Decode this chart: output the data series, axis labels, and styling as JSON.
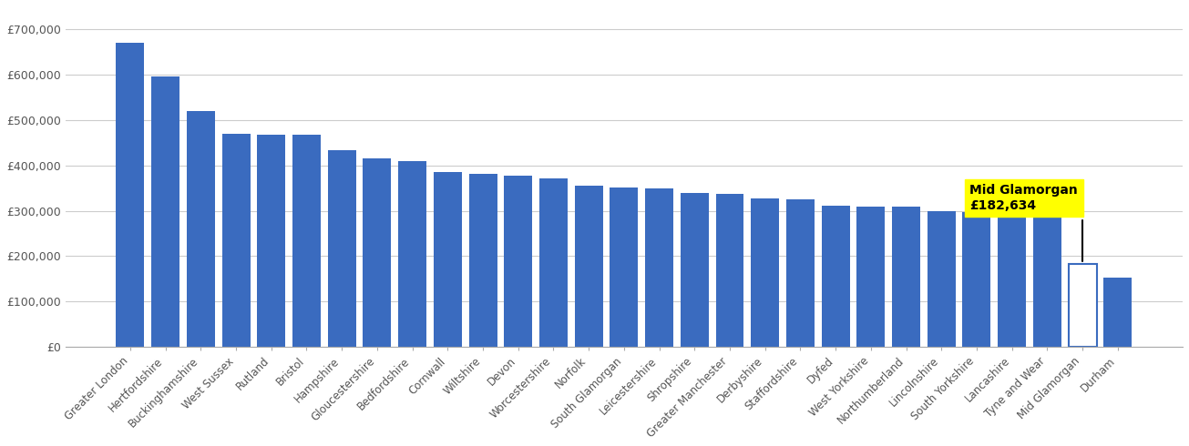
{
  "categories": [
    "Greater London",
    "Hertfordshire",
    "Buckinghamshire",
    "West Sussex",
    "Rutland",
    "Bristol",
    "Hampshire",
    "Gloucestershire",
    "Bedfordshire",
    "Cornwall",
    "Wiltshire",
    "Devon",
    "Worcestershire",
    "Norfolk",
    "South Glamorgan",
    "Leicestershire",
    "Shropshire",
    "Greater Manchester",
    "Derbyshire",
    "Staffordshire",
    "Dyfed",
    "West Yorkshire",
    "Northumberland",
    "Lincolnshire",
    "South Yorkshire",
    "Lancashire",
    "Tyne and Wear",
    "Mid Glamorgan",
    "Durham"
  ],
  "values": [
    670000,
    595000,
    520000,
    470000,
    468000,
    467000,
    433000,
    415000,
    410000,
    385000,
    382000,
    377000,
    372000,
    355000,
    352000,
    350000,
    340000,
    337000,
    328000,
    326000,
    312000,
    310000,
    310000,
    300000,
    297000,
    294000,
    294000,
    182634,
    152000
  ],
  "highlight_index": 27,
  "highlight_label_line1": "Mid Glamorgan",
  "highlight_label_line2": "£182,634",
  "bar_color": "#3a6bbf",
  "highlight_bar_color": "#ffffff",
  "highlight_bar_edgecolor": "#3a6bbf",
  "annotation_bg_color": "#ffff00",
  "ylabel_ticks": [
    0,
    100000,
    200000,
    300000,
    400000,
    500000,
    600000,
    700000
  ],
  "ylabel_labels": [
    "£0",
    "£100,000",
    "£200,000",
    "£300,000",
    "£400,000",
    "£500,000",
    "£600,000",
    "£700,000"
  ],
  "ylim": [
    0,
    750000
  ],
  "background_color": "#ffffff",
  "grid_color": "#cccccc"
}
